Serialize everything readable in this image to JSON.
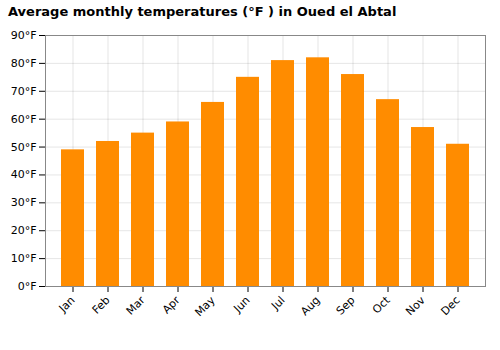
{
  "chart_data": {
    "type": "bar",
    "title": "Average monthly temperatures (°F ) in Oued el Abtal",
    "categories": [
      "Jan",
      "Feb",
      "Mar",
      "Apr",
      "May",
      "Jun",
      "Jul",
      "Aug",
      "Sep",
      "Oct",
      "Nov",
      "Dec"
    ],
    "values": [
      49,
      52,
      55,
      59,
      66,
      75,
      81,
      82,
      76,
      67,
      57,
      51
    ],
    "color": "#FF8C00",
    "ylim": [
      0,
      90
    ],
    "yticks": [
      {
        "value": 0,
        "label": "0°F"
      },
      {
        "value": 10,
        "label": "10°F"
      },
      {
        "value": 20,
        "label": "20°F"
      },
      {
        "value": 30,
        "label": "30°F"
      },
      {
        "value": 40,
        "label": "40°F"
      },
      {
        "value": 50,
        "label": "50°F"
      },
      {
        "value": 60,
        "label": "60°F"
      },
      {
        "value": 70,
        "label": "70°F"
      },
      {
        "value": 80,
        "label": "80°F"
      },
      {
        "value": 90,
        "label": "90°F"
      }
    ],
    "grid": true
  }
}
